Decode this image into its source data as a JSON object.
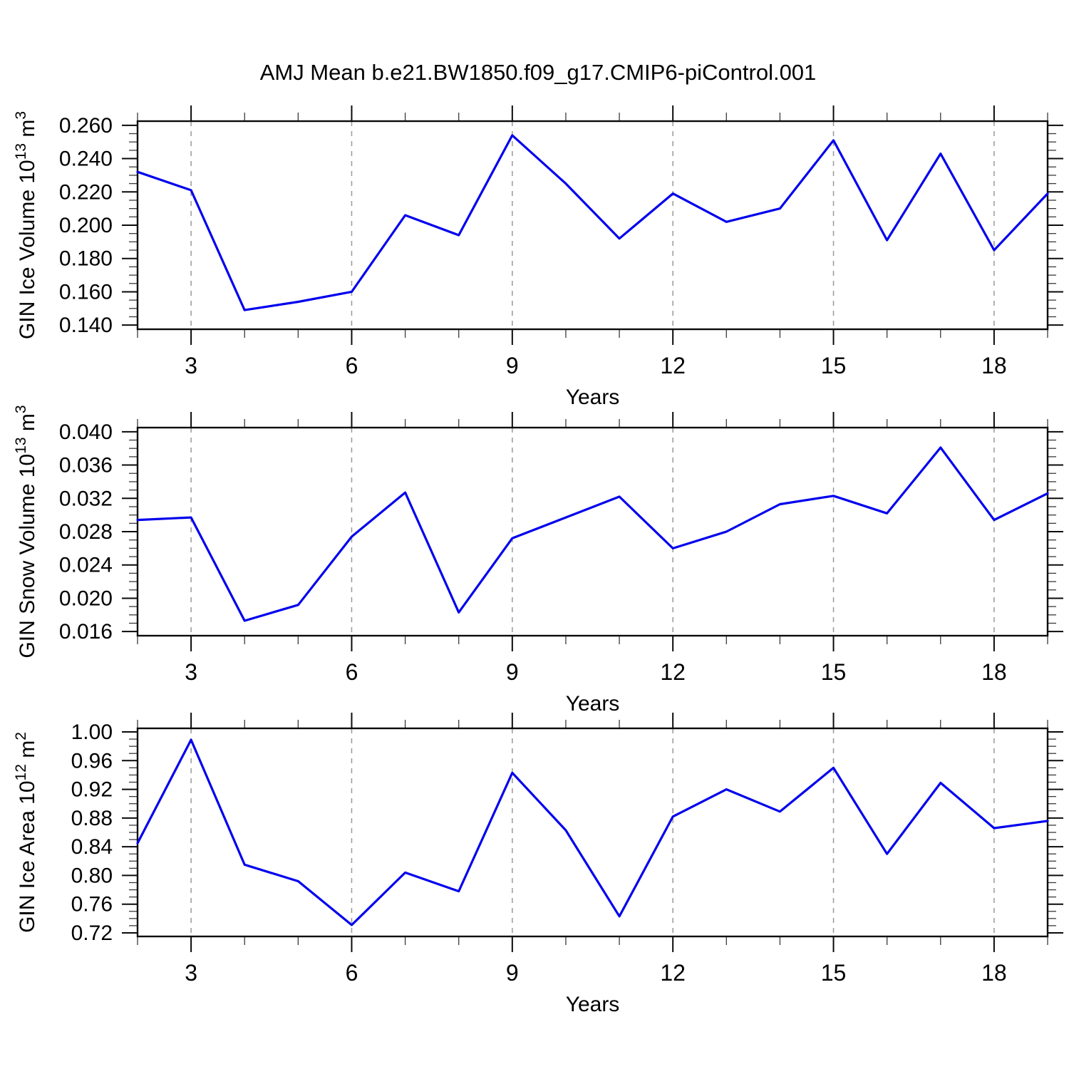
{
  "title": "AMJ Mean b.e21.BW1850.f09_g17.CMIP6-piControl.001",
  "colors": {
    "line": "#0000EE",
    "grid": "#999999",
    "frame": "#000000",
    "text": "#000000",
    "background": "#FFFFFF"
  },
  "xlabel": "Years",
  "chart_data": [
    {
      "type": "line",
      "name": "gin-ice-volume",
      "ylabel": "GIN Ice Volume 10^13 m^3",
      "ylabel_parts": [
        {
          "text": "GIN Ice Volume 10"
        },
        {
          "text": "13",
          "sup": true
        },
        {
          "text": " m"
        },
        {
          "text": "3",
          "sup": true
        }
      ],
      "xlabel": "Years",
      "x": [
        2,
        3,
        4,
        5,
        6,
        7,
        8,
        9,
        10,
        11,
        12,
        13,
        14,
        15,
        16,
        17,
        18,
        19
      ],
      "values": [
        0.232,
        0.221,
        0.149,
        0.154,
        0.16,
        0.206,
        0.194,
        0.254,
        0.225,
        0.192,
        0.219,
        0.202,
        0.21,
        0.251,
        0.191,
        0.243,
        0.185,
        0.219
      ],
      "xlim": [
        2,
        19
      ],
      "ylim": [
        0.1375,
        0.2625
      ],
      "xticks": {
        "major": [
          3,
          6,
          9,
          12,
          15,
          18
        ],
        "labels": [
          "3",
          "6",
          "9",
          "12",
          "15",
          "18"
        ],
        "minor_step": 1
      },
      "yticks": {
        "major": [
          0.14,
          0.16,
          0.18,
          0.2,
          0.22,
          0.24,
          0.26
        ],
        "labels": [
          "0.140",
          "0.160",
          "0.180",
          "0.200",
          "0.220",
          "0.240",
          "0.260"
        ],
        "minor_step": 0.005
      },
      "grid": {
        "vertical_dashed_at": [
          3,
          6,
          9,
          12,
          15,
          18
        ]
      },
      "line_color": "#0000EE",
      "legend": null
    },
    {
      "type": "line",
      "name": "gin-snow-volume",
      "ylabel": "GIN Snow Volume 10^13 m^3",
      "ylabel_parts": [
        {
          "text": "GIN Snow Volume 10"
        },
        {
          "text": "13",
          "sup": true
        },
        {
          "text": " m"
        },
        {
          "text": "3",
          "sup": true
        }
      ],
      "xlabel": "Years",
      "x": [
        2,
        3,
        4,
        5,
        6,
        7,
        8,
        9,
        10,
        11,
        12,
        13,
        14,
        15,
        16,
        17,
        18,
        19
      ],
      "values": [
        0.0294,
        0.0297,
        0.0173,
        0.0192,
        0.0274,
        0.0327,
        0.0183,
        0.0272,
        0.0297,
        0.0322,
        0.026,
        0.028,
        0.0313,
        0.0323,
        0.0302,
        0.0381,
        0.0294,
        0.0326
      ],
      "xlim": [
        2,
        19
      ],
      "ylim": [
        0.0155,
        0.0405
      ],
      "xticks": {
        "major": [
          3,
          6,
          9,
          12,
          15,
          18
        ],
        "labels": [
          "3",
          "6",
          "9",
          "12",
          "15",
          "18"
        ],
        "minor_step": 1
      },
      "yticks": {
        "major": [
          0.016,
          0.02,
          0.024,
          0.028,
          0.032,
          0.036,
          0.04
        ],
        "labels": [
          "0.016",
          "0.020",
          "0.024",
          "0.028",
          "0.032",
          "0.036",
          "0.040"
        ],
        "minor_step": 0.001
      },
      "grid": {
        "vertical_dashed_at": [
          3,
          6,
          9,
          12,
          15,
          18
        ]
      },
      "line_color": "#0000EE",
      "legend": null
    },
    {
      "type": "line",
      "name": "gin-ice-area",
      "ylabel": "GIN Ice Area 10^12 m^2",
      "ylabel_parts": [
        {
          "text": "GIN Ice Area 10"
        },
        {
          "text": "12",
          "sup": true
        },
        {
          "text": " m"
        },
        {
          "text": "2",
          "sup": true
        }
      ],
      "xlabel": "Years",
      "x": [
        2,
        3,
        4,
        5,
        6,
        7,
        8,
        9,
        10,
        11,
        12,
        13,
        14,
        15,
        16,
        17,
        18,
        19
      ],
      "values": [
        0.845,
        0.989,
        0.815,
        0.792,
        0.731,
        0.804,
        0.778,
        0.943,
        0.863,
        0.743,
        0.882,
        0.92,
        0.889,
        0.95,
        0.83,
        0.929,
        0.866,
        0.876
      ],
      "xlim": [
        2,
        19
      ],
      "ylim": [
        0.715,
        1.005
      ],
      "xticks": {
        "major": [
          3,
          6,
          9,
          12,
          15,
          18
        ],
        "labels": [
          "3",
          "6",
          "9",
          "12",
          "15",
          "18"
        ],
        "minor_step": 1
      },
      "yticks": {
        "major": [
          0.72,
          0.76,
          0.8,
          0.84,
          0.88,
          0.92,
          0.96,
          1.0
        ],
        "labels": [
          "0.72",
          "0.76",
          "0.80",
          "0.84",
          "0.88",
          "0.92",
          "0.96",
          "1.00"
        ],
        "minor_step": 0.01
      },
      "grid": {
        "vertical_dashed_at": [
          3,
          6,
          9,
          12,
          15,
          18
        ]
      },
      "line_color": "#0000EE",
      "legend": null
    }
  ]
}
